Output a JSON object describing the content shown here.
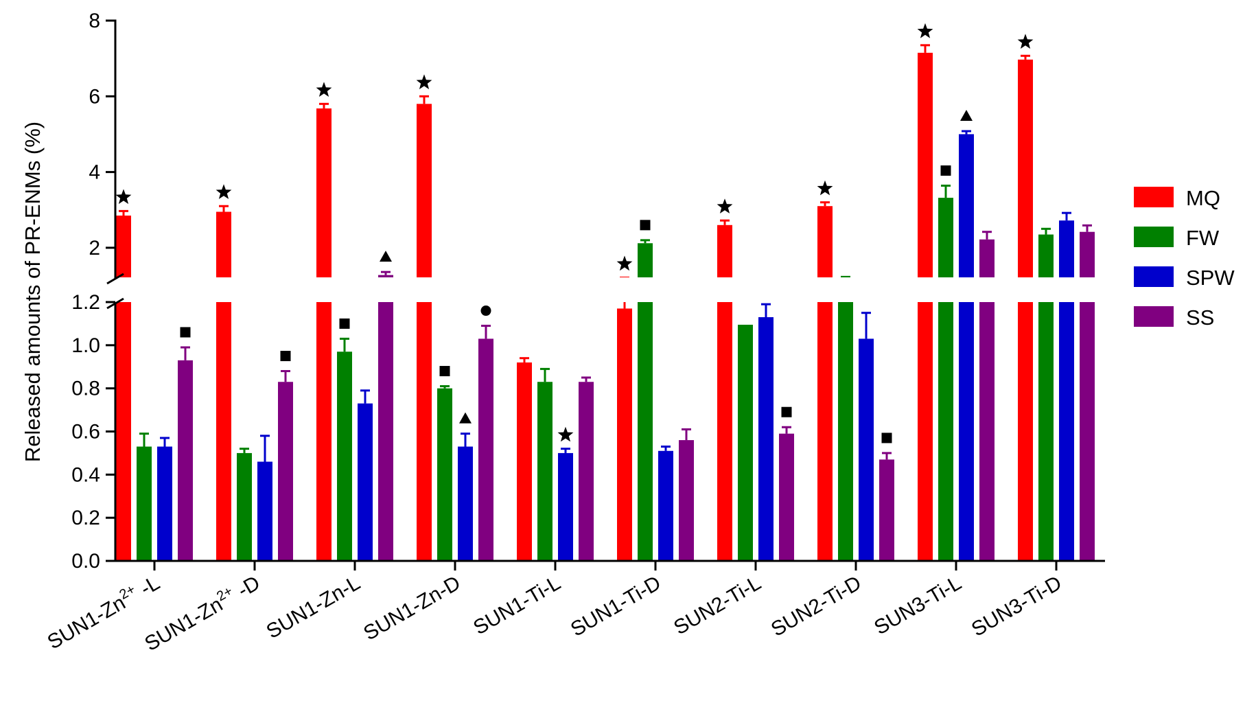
{
  "chart_data": {
    "type": "bar",
    "ylabel": "Released amounts of PR-ENMs (%)",
    "y_axis_break": {
      "lower_range": [
        0,
        1.2
      ],
      "upper_range": [
        1.2,
        8
      ]
    },
    "lower_ticks": [
      "0.0",
      "0.2",
      "0.4",
      "0.6",
      "0.8",
      "1.0",
      "1.2"
    ],
    "upper_ticks": [
      "2",
      "4",
      "6",
      "8"
    ],
    "categories": [
      {
        "base": "SUN1-Zn",
        "sup": "2+",
        "tail": " -L"
      },
      {
        "base": "SUN1-Zn",
        "sup": "2+",
        "tail": " -D"
      },
      {
        "base": "SUN1-Zn-L",
        "sup": "",
        "tail": ""
      },
      {
        "base": "SUN1-Zn-D",
        "sup": "",
        "tail": ""
      },
      {
        "base": "SUN1-Ti-L",
        "sup": "",
        "tail": ""
      },
      {
        "base": "SUN1-Ti-D",
        "sup": "",
        "tail": ""
      },
      {
        "base": "SUN2-Ti-L",
        "sup": "",
        "tail": ""
      },
      {
        "base": "SUN2-Ti-D",
        "sup": "",
        "tail": ""
      },
      {
        "base": "SUN3-Ti-L",
        "sup": "",
        "tail": ""
      },
      {
        "base": "SUN3-Ti-D",
        "sup": "",
        "tail": ""
      }
    ],
    "series": [
      {
        "name": "MQ",
        "color": "#ff0000",
        "values": [
          2.85,
          2.95,
          5.68,
          5.8,
          0.92,
          1.17,
          2.6,
          3.1,
          7.15,
          6.97
        ],
        "errors": [
          0.12,
          0.15,
          0.12,
          0.2,
          0.02,
          0.04,
          0.12,
          0.1,
          0.2,
          0.1
        ],
        "markers": [
          "star",
          "star",
          "star",
          "star",
          null,
          "star",
          "star",
          "star",
          "star",
          "star"
        ]
      },
      {
        "name": "FW",
        "color": "#008000",
        "values": [
          0.53,
          0.5,
          0.97,
          0.8,
          0.83,
          2.12,
          1.09,
          1.2,
          3.32,
          2.35
        ],
        "errors": [
          0.06,
          0.02,
          0.06,
          0.01,
          0.06,
          0.08,
          0.0,
          0.03,
          0.32,
          0.15
        ],
        "markers": [
          null,
          null,
          "square",
          "square",
          null,
          "square",
          null,
          null,
          "square",
          null
        ]
      },
      {
        "name": "SPW",
        "color": "#0000cc",
        "values": [
          0.53,
          0.46,
          0.73,
          0.53,
          0.5,
          0.51,
          1.13,
          1.03,
          5.0,
          2.72
        ],
        "errors": [
          0.04,
          0.12,
          0.06,
          0.06,
          0.02,
          0.02,
          0.06,
          0.12,
          0.08,
          0.2
        ],
        "markers": [
          null,
          null,
          null,
          "triangle",
          "star",
          null,
          null,
          null,
          "triangle",
          null
        ]
      },
      {
        "name": "SS",
        "color": "#800080",
        "values": [
          0.93,
          0.83,
          1.28,
          1.03,
          0.83,
          0.56,
          0.59,
          0.47,
          2.22,
          2.42
        ],
        "errors": [
          0.06,
          0.05,
          0.08,
          0.06,
          0.02,
          0.05,
          0.03,
          0.03,
          0.2,
          0.17
        ],
        "markers": [
          "square",
          "square",
          "triangle",
          "circle",
          null,
          null,
          "square",
          "square",
          null,
          null
        ]
      }
    ],
    "legend": {
      "position": "right",
      "entries": [
        "MQ",
        "FW",
        "SPW",
        "SS"
      ]
    },
    "grid": false
  }
}
